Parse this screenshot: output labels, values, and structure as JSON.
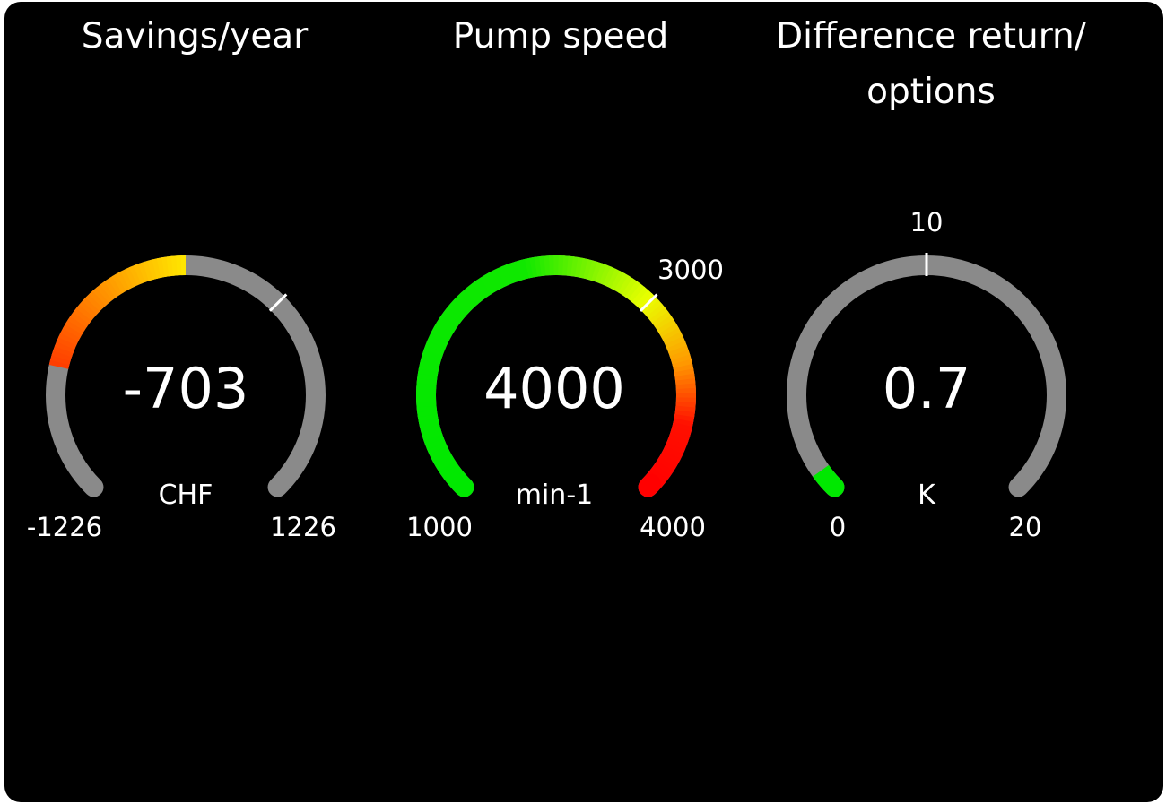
{
  "gauges": [
    {
      "title": "Savings/year",
      "value": -703,
      "value_text": "-703",
      "unit": "CHF",
      "min": -1226,
      "max": 1226,
      "min_label": "-1226",
      "max_label": "1226",
      "fill_from": 0,
      "marker": 408,
      "marker_label": "",
      "color_stops": [
        [
          0.0,
          "#ff2a00"
        ],
        [
          0.21,
          "#ff3a00"
        ],
        [
          0.5,
          "#ffe800"
        ]
      ]
    },
    {
      "title": "Pump speed",
      "value": 4000,
      "value_text": "4000",
      "unit": "min-1",
      "min": 1000,
      "max": 4000,
      "min_label": "1000",
      "max_label": "4000",
      "fill_from": 1000,
      "marker": 3000,
      "marker_label": "3000",
      "color_stops": [
        [
          0.0,
          "#00e800"
        ],
        [
          0.45,
          "#10e800"
        ],
        [
          0.66,
          "#eaff00"
        ],
        [
          0.78,
          "#ff9a00"
        ],
        [
          0.88,
          "#ff1000"
        ],
        [
          1.0,
          "#ff0000"
        ]
      ]
    },
    {
      "title": "Difference return/ options",
      "value": 0.7,
      "value_text": "0.7",
      "unit": "K",
      "min": 0,
      "max": 20,
      "min_label": "0",
      "max_label": "20",
      "fill_from": 0,
      "marker": 10,
      "marker_label": "10",
      "color_stops": [
        [
          0.0,
          "#00e800"
        ],
        [
          1.0,
          "#00e800"
        ]
      ]
    }
  ],
  "track_color": "#8a8a8a",
  "marker_color": "#ffffff"
}
